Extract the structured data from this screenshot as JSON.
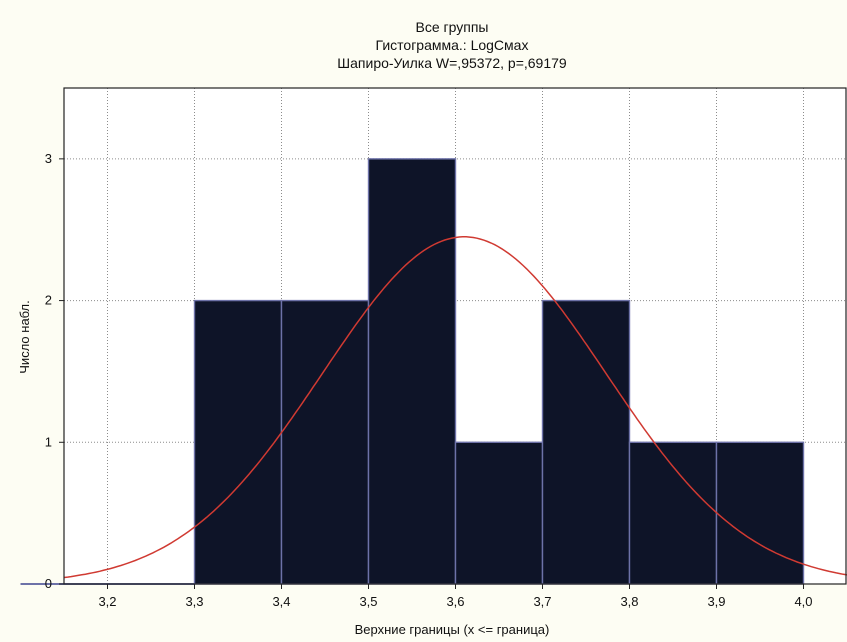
{
  "chart_data": {
    "type": "bar",
    "title": "Все группы",
    "subtitle": "Гистограмма.: LogCмах",
    "subtitle2": "Шапиро-Уилка W=,95372, p=,69179",
    "xlabel": "Верхние границы (x <= граница)",
    "ylabel": "Число набл.",
    "xlim": [
      3.15,
      4.05
    ],
    "ylim": [
      0,
      3.5
    ],
    "x_ticks": [
      "3,2",
      "3,3",
      "3,4",
      "3,5",
      "3,6",
      "3,7",
      "3,8",
      "3,9",
      "4,0"
    ],
    "x_tick_values": [
      3.2,
      3.3,
      3.4,
      3.5,
      3.6,
      3.7,
      3.8,
      3.9,
      4.0
    ],
    "y_ticks": [
      "0",
      "1",
      "2",
      "3"
    ],
    "y_tick_values": [
      0,
      1,
      2,
      3
    ],
    "grid": true,
    "bins": [
      {
        "upper": 3.2,
        "count": 0
      },
      {
        "upper": 3.3,
        "count": 0
      },
      {
        "upper": 3.4,
        "count": 2
      },
      {
        "upper": 3.5,
        "count": 2
      },
      {
        "upper": 3.6,
        "count": 3
      },
      {
        "upper": 3.7,
        "count": 1
      },
      {
        "upper": 3.8,
        "count": 2
      },
      {
        "upper": 3.9,
        "count": 1
      },
      {
        "upper": 4.0,
        "count": 1
      }
    ],
    "bin_width": 0.1,
    "normal_curve": {
      "mean": 3.61,
      "sd": 0.163,
      "peak": 2.45
    },
    "colors": {
      "bar_fill": "#0e1428",
      "bar_edge": "#6d72a8",
      "curve": "#d03a32",
      "grid": "#8c8c8c"
    }
  }
}
